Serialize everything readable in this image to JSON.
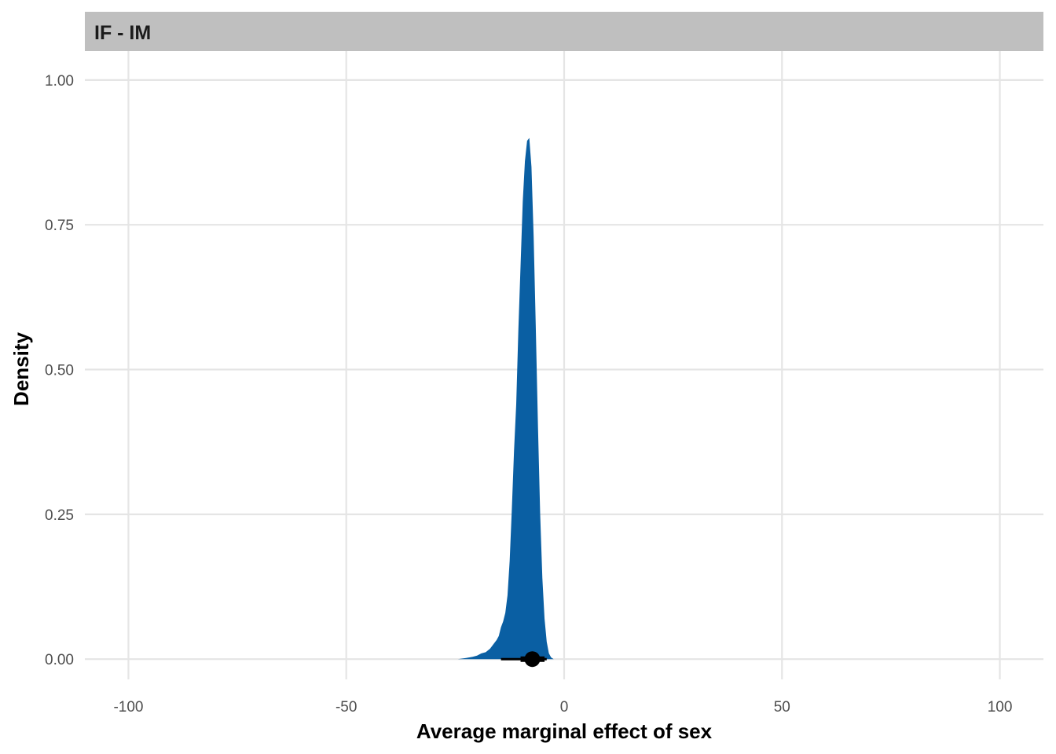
{
  "chart_data": {
    "type": "area",
    "facet_label": "IF - IM",
    "xlabel": "Average marginal effect of sex",
    "ylabel": "Density",
    "xlim": [
      -110,
      110
    ],
    "ylim": [
      -0.035,
      1.05
    ],
    "x_ticks": [
      -100,
      -50,
      0,
      50,
      100
    ],
    "x_tick_labels": [
      "-100",
      "-50",
      "0",
      "50",
      "100"
    ],
    "y_ticks": [
      0,
      0.25,
      0.5,
      0.75,
      1.0
    ],
    "y_tick_labels": [
      "0.00",
      "0.25",
      "0.50",
      "0.75",
      "1.00"
    ],
    "grid": true,
    "density_color": "#0a5fa3",
    "strip_color": "#bfbfbf",
    "density": {
      "x": [
        -24.4,
        -22.5,
        -21.0,
        -20.0,
        -19.0,
        -18.0,
        -17.0,
        -16.0,
        -15.5,
        -15.0,
        -14.5,
        -14.0,
        -13.5,
        -13.0,
        -12.5,
        -12.0,
        -11.5,
        -11.0,
        -10.5,
        -10.0,
        -9.5,
        -9.0,
        -8.5,
        -8.0,
        -7.5,
        -7.0,
        -6.5,
        -6.0,
        -5.5,
        -5.0,
        -4.5,
        -4.0,
        -3.5,
        -3.0,
        -2.4
      ],
      "y": [
        0.0,
        0.002,
        0.004,
        0.006,
        0.01,
        0.012,
        0.018,
        0.028,
        0.033,
        0.04,
        0.055,
        0.065,
        0.08,
        0.11,
        0.17,
        0.26,
        0.36,
        0.44,
        0.57,
        0.68,
        0.79,
        0.86,
        0.895,
        0.9,
        0.85,
        0.73,
        0.57,
        0.4,
        0.25,
        0.14,
        0.07,
        0.03,
        0.01,
        0.003,
        0.0
      ]
    },
    "point_estimate": -7.3,
    "interval_inner": [
      -10.0,
      -4.5
    ],
    "interval_outer": [
      -14.5,
      -4.0
    ]
  }
}
